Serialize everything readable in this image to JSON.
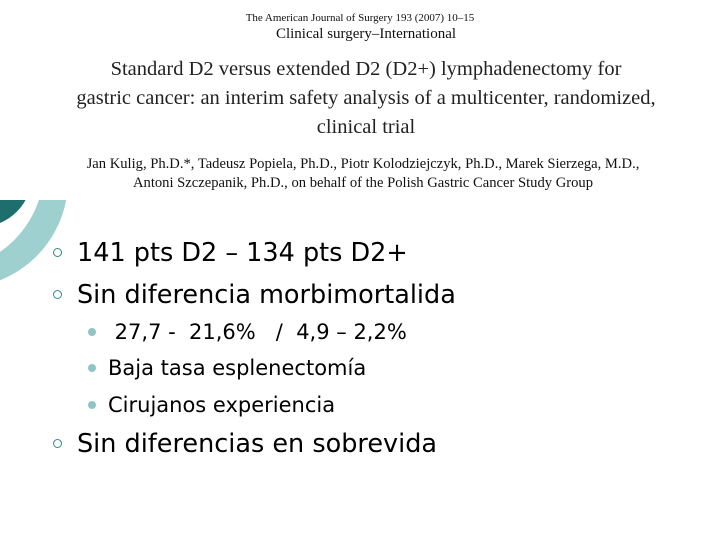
{
  "header": {
    "journal_line": "The American Journal of Surgery 193 (2007) 10–15",
    "section_line": "Clinical surgery–International",
    "title_lines": [
      "Standard D2 versus extended D2 (D2+) lymphadenectomy for",
      "gastric cancer: an interim safety analysis of a multicenter, randomized,",
      "clinical trial"
    ],
    "author_lines": [
      "Jan Kulig, Ph.D.*, Tadeusz Popiela, Ph.D., Piotr Kolodziejczyk, Ph.D., Marek Sierzega, M.D.,",
      "Antoni Szczepanik, Ph.D., on behalf of the Polish Gastric Cancer Study Group"
    ]
  },
  "bullets": {
    "b1": "141 pts D2 – 134 pts D2+",
    "b2": "Sin diferencia morbimortalida",
    "sub1": " 27,7 -  21,6%   /  4,9 – 2,2%",
    "sub2": "Baja tasa esplenectomía",
    "sub3": "Cirujanos experiencia",
    "b3": "Sin diferencias en sobrevida"
  },
  "colors": {
    "decor_dark": "#1e6e6e",
    "decor_light": "#9fd0d0",
    "bullet_ring": "#2f8a8a",
    "sub_dot": "#8fc5c5"
  }
}
